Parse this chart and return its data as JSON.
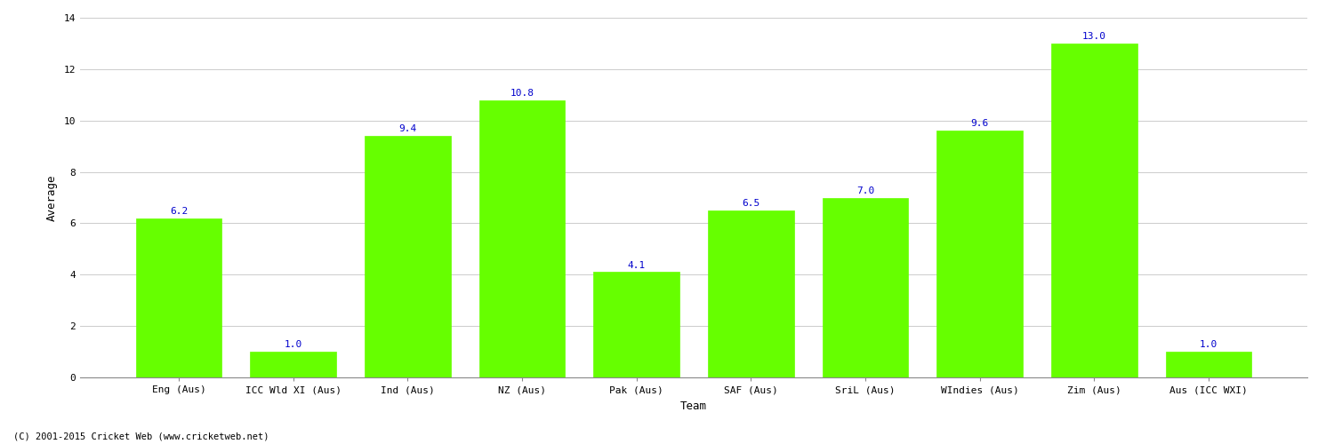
{
  "categories": [
    "Eng (Aus)",
    "ICC Wld XI (Aus)",
    "Ind (Aus)",
    "NZ (Aus)",
    "Pak (Aus)",
    "SAF (Aus)",
    "SriL (Aus)",
    "WIndies (Aus)",
    "Zim (Aus)",
    "Aus (ICC WXI)"
  ],
  "values": [
    6.2,
    1.0,
    9.4,
    10.8,
    4.1,
    6.5,
    7.0,
    9.6,
    13.0,
    1.0
  ],
  "bar_color": "#66ff00",
  "bar_edge_color": "#66ff00",
  "ylabel": "Average",
  "xlabel": "Team",
  "ylim": [
    0,
    14
  ],
  "yticks": [
    0,
    2,
    4,
    6,
    8,
    10,
    12,
    14
  ],
  "label_color": "#0000cc",
  "label_fontsize": 8,
  "axis_label_fontsize": 9,
  "tick_fontsize": 8,
  "bg_color": "#ffffff",
  "grid_color": "#cccccc",
  "footer_text": "(C) 2001-2015 Cricket Web (www.cricketweb.net)",
  "footer_fontsize": 7.5
}
